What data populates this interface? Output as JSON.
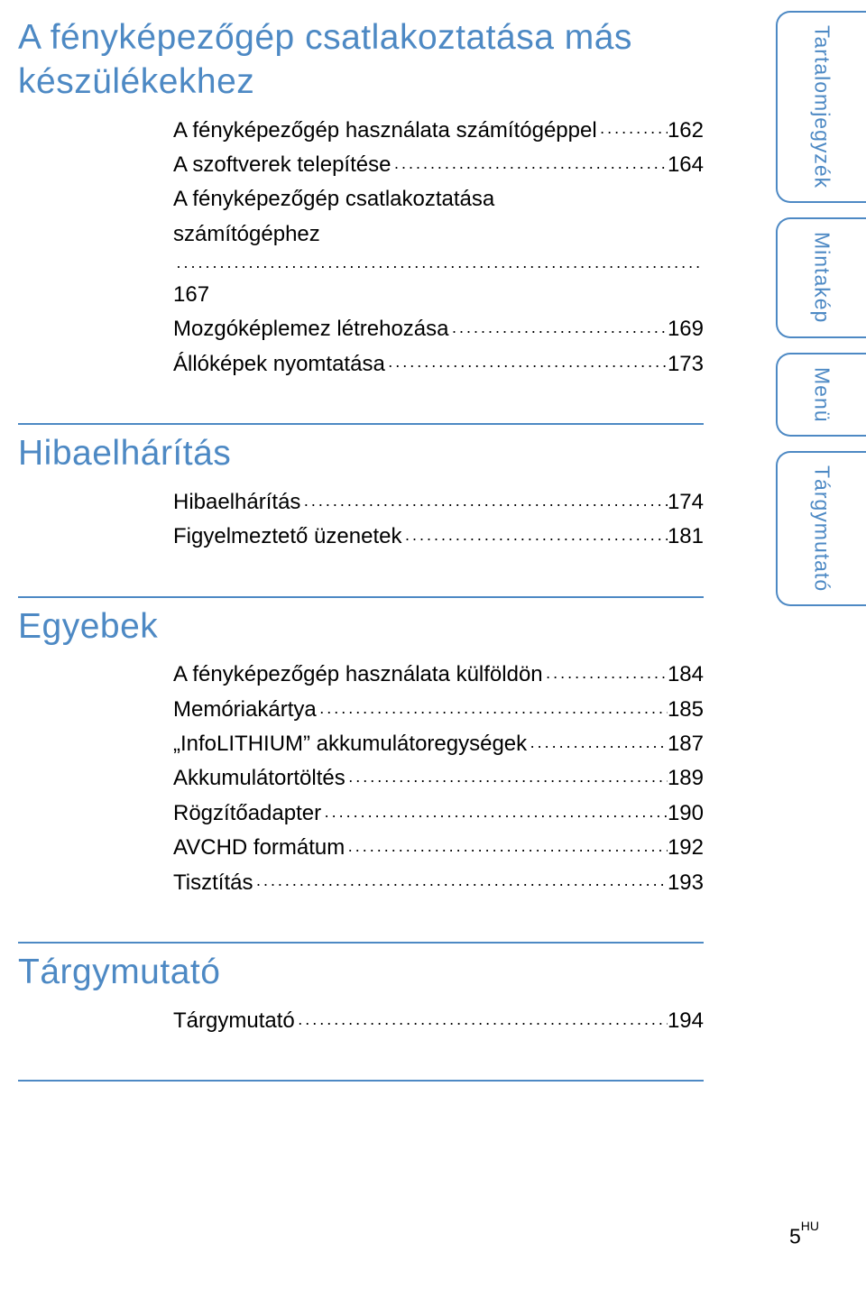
{
  "colors": {
    "heading_and_rule": "#4d89c4",
    "body_text": "#000000",
    "background": "#ffffff",
    "tab_border": "#4d89c4",
    "tab_text": "#4d89c4"
  },
  "typography": {
    "heading_fontsize_pt": 29,
    "toc_fontsize_pt": 18,
    "tab_fontsize_pt": 17,
    "footer_fontsize_pt": 17,
    "font_family": "Arial"
  },
  "sections": [
    {
      "heading": "A fényképezőgép csatlakoztatása más készülékekhez",
      "items": [
        {
          "label": "A fényképezőgép használata számítógéppel",
          "page": "162"
        },
        {
          "label": "A szoftverek telepítése",
          "page": "164"
        },
        {
          "label": "A fényképezőgép csatlakoztatása számítógéphez",
          "page": "167"
        },
        {
          "label": "Mozgóképlemez létrehozása",
          "page": "169"
        },
        {
          "label": "Állóképek nyomtatása",
          "page": "173"
        }
      ]
    },
    {
      "heading": "Hibaelhárítás",
      "items": [
        {
          "label": "Hibaelhárítás",
          "page": "174"
        },
        {
          "label": "Figyelmeztető üzenetek",
          "page": "181"
        }
      ]
    },
    {
      "heading": "Egyebek",
      "items": [
        {
          "label": "A fényképezőgép használata külföldön",
          "page": "184"
        },
        {
          "label": "Memóriakártya",
          "page": "185"
        },
        {
          "label": "„InfoLITHIUM” akkumulátoregységek",
          "page": "187"
        },
        {
          "label": "Akkumulátortöltés",
          "page": "189"
        },
        {
          "label": "Rögzítőadapter",
          "page": "190"
        },
        {
          "label": "AVCHD formátum",
          "page": "192"
        },
        {
          "label": "Tisztítás",
          "page": "193"
        }
      ]
    },
    {
      "heading": "Tárgymutató",
      "items": [
        {
          "label": "Tárgymutató",
          "page": "194"
        }
      ]
    }
  ],
  "side_tabs": [
    {
      "label": "Tartalomjegyzék",
      "height_factor": 1.0
    },
    {
      "label": "Mintakép",
      "height_factor": 0.62
    },
    {
      "label": "Menü",
      "height_factor": 0.4
    },
    {
      "label": "Tárgymutató",
      "height_factor": 0.82
    }
  ],
  "footer": {
    "page_number": "5",
    "lang_code": "HU"
  }
}
